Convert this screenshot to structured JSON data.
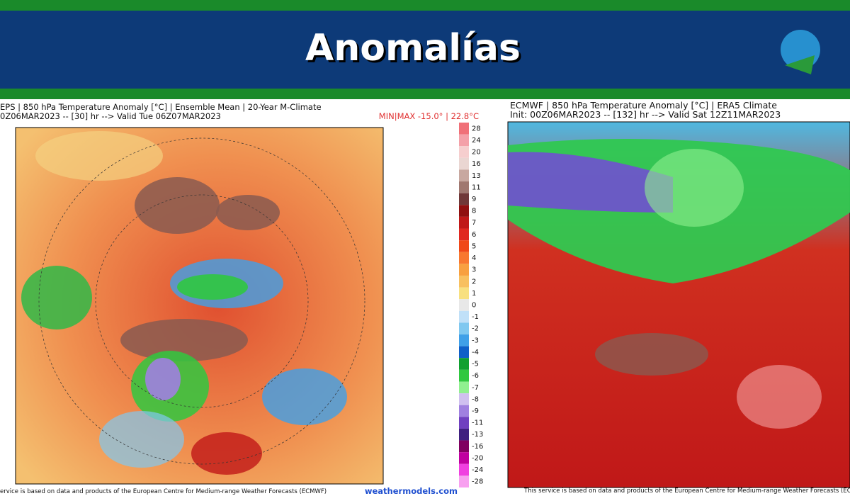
{
  "header": {
    "title": "Anomalías"
  },
  "left_panel": {
    "title": "EPS | 850 hPa Temperature Anomaly [°C] | Ensemble Mean | 20-Year M-Climate",
    "subtitle": "0Z06MAR2023 -- [30] hr --> Valid Tue 06Z07MAR2023",
    "minmax": "MIN|MAX -15.0° | 22.8°C",
    "footer": "ervice is based on data and products of the European Centre for Medium-range Weather Forecasts (ECMWF)",
    "brand": "weathermodels.com"
  },
  "colorbar": {
    "labels": [
      28,
      24,
      20,
      16,
      13,
      11,
      9,
      8,
      7,
      6,
      5,
      4,
      3,
      2,
      1,
      0,
      -1,
      -2,
      -3,
      -4,
      -5,
      -6,
      -7,
      -8,
      -9,
      -11,
      -13,
      -16,
      -20,
      -24,
      -28
    ],
    "colors": [
      "#f07078",
      "#f4a0a8",
      "#f6cece",
      "#ead6d2",
      "#c8a8a0",
      "#a07870",
      "#703838",
      "#901010",
      "#c01818",
      "#e02820",
      "#f04818",
      "#f87830",
      "#f8a040",
      "#f8c060",
      "#f8e080",
      "#e8e8e8",
      "#c0e0f8",
      "#80c8f0",
      "#40a0e8",
      "#1060c8",
      "#10a030",
      "#30c840",
      "#90f090",
      "#d0c0f0",
      "#a080e0",
      "#7040c0",
      "#402080",
      "#800060",
      "#c000a0",
      "#f040e0",
      "#f8a0f0"
    ]
  },
  "right_panel": {
    "title": "ECMWF | 850 hPa Temperature Anomaly [°C] | ERA5 Climate",
    "subtitle": "Init: 00Z06MAR2023 -- [132] hr --> Valid Sat 12Z11MAR2023",
    "footer": "This service is based on data and products of the European Centre for Medium-range Weather Forecasts (ECMWF"
  }
}
